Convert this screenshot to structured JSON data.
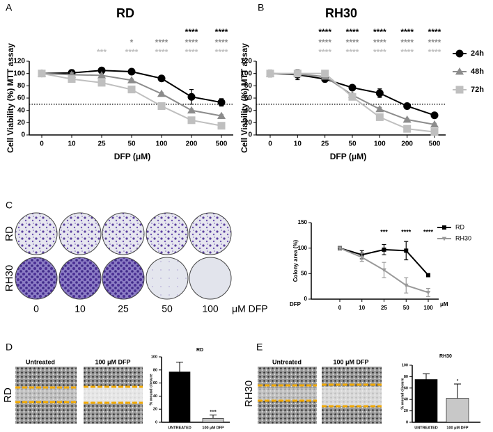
{
  "chart_data": [
    {
      "type": "line",
      "panel": "A",
      "title": "RD",
      "xlabel": "DFP (μM)",
      "ylabel": "Cell Viability (%) MTT assay",
      "categories": [
        "0",
        "10",
        "25",
        "50",
        "100",
        "200",
        "500"
      ],
      "ylim": [
        0,
        120
      ],
      "yticks": [
        0,
        20,
        40,
        60,
        80,
        100,
        120
      ],
      "reference_line": 50,
      "series": [
        {
          "color": "#000000",
          "marker": "circle",
          "values": [
            100,
            101,
            105,
            103,
            92,
            62,
            53
          ],
          "errors": [
            4,
            5,
            4,
            3,
            2,
            12,
            6
          ],
          "significance": [
            null,
            null,
            null,
            null,
            null,
            "****",
            "****"
          ]
        },
        {
          "color": "#8c8c8c",
          "marker": "triangle",
          "values": [
            100,
            98,
            97,
            89,
            67,
            40,
            31
          ],
          "errors": [
            3,
            3,
            2,
            2,
            2,
            2,
            2
          ],
          "significance": [
            null,
            null,
            null,
            "*",
            "****",
            "****",
            "****"
          ]
        },
        {
          "color": "#bfbfbf",
          "marker": "square",
          "values": [
            100,
            91,
            85,
            74,
            47,
            24,
            15
          ],
          "errors": [
            3,
            2,
            2,
            2,
            2,
            2,
            2
          ],
          "significance": [
            null,
            null,
            "***",
            "****",
            "****",
            "****",
            "****"
          ]
        }
      ]
    },
    {
      "type": "line",
      "panel": "B",
      "title": "RH30",
      "xlabel": "DFP (μM)",
      "ylabel": "Cell Viability (%) MTT assay",
      "categories": [
        "0",
        "10",
        "25",
        "50",
        "100",
        "200",
        "500"
      ],
      "ylim": [
        0,
        120
      ],
      "yticks": [
        0,
        20,
        40,
        60,
        80,
        100,
        120
      ],
      "reference_line": 50,
      "legend": "right",
      "series": [
        {
          "name": "24h",
          "color": "#000000",
          "marker": "circle",
          "values": [
            100,
            98,
            91,
            77,
            68,
            47,
            32
          ],
          "errors": [
            5,
            8,
            5,
            4,
            7,
            2,
            2
          ],
          "significance": [
            null,
            null,
            "****",
            "****",
            "****",
            "****",
            "****"
          ]
        },
        {
          "name": "48h",
          "color": "#8c8c8c",
          "marker": "triangle",
          "values": [
            100,
            99,
            95,
            65,
            42,
            25,
            17
          ],
          "errors": [
            4,
            4,
            3,
            3,
            3,
            2,
            2
          ],
          "significance": [
            null,
            null,
            "****",
            "****",
            "****",
            "****",
            "****"
          ]
        },
        {
          "name": "72h",
          "color": "#bfbfbf",
          "marker": "square",
          "values": [
            100,
            100,
            100,
            62,
            29,
            10,
            5
          ],
          "errors": [
            6,
            3,
            3,
            3,
            2,
            2,
            2
          ],
          "significance": [
            null,
            null,
            "****",
            "****",
            "****",
            "****",
            "****"
          ]
        }
      ]
    },
    {
      "type": "line",
      "ylabel": "Colony area (%)",
      "xlabel": "DFP",
      "xunit": "μM",
      "categories": [
        "0",
        "10",
        "25",
        "50",
        "100"
      ],
      "ylim": [
        0,
        150
      ],
      "yticks": [
        0,
        50,
        100,
        150
      ],
      "legend": "top right",
      "annotations": [
        null,
        null,
        "***",
        "****",
        "****"
      ],
      "series": [
        {
          "name": "RD",
          "color": "#000000",
          "marker": "square",
          "values": [
            100,
            87,
            97,
            95,
            47
          ],
          "errors": [
            2,
            8,
            10,
            18,
            3
          ]
        },
        {
          "name": "RH30",
          "color": "#999999",
          "marker": "triangle-down",
          "values": [
            100,
            82,
            57,
            27,
            13
          ],
          "errors": [
            2,
            8,
            15,
            15,
            8
          ]
        }
      ]
    },
    {
      "type": "bar",
      "title": "RD",
      "ylabel": "% wound closure",
      "categories": [
        "UNTREATED",
        "100 μM DFP"
      ],
      "values": [
        77,
        6
      ],
      "errors": [
        15,
        5
      ],
      "colors": [
        "#000000",
        "#c8c8c8"
      ],
      "annotations": [
        null,
        "****"
      ],
      "ylim": [
        0,
        100
      ],
      "yticks": [
        0,
        20,
        40,
        60,
        80,
        100
      ]
    },
    {
      "type": "bar",
      "title": "RH30",
      "ylabel": "% wound closure",
      "categories": [
        "UNTREATED",
        "100 μM DFP"
      ],
      "values": [
        75,
        42
      ],
      "errors": [
        10,
        25
      ],
      "colors": [
        "#000000",
        "#c8c8c8"
      ],
      "annotations": [
        null,
        "*"
      ],
      "ylim": [
        0,
        100
      ],
      "yticks": [
        0,
        20,
        40,
        60,
        80,
        100
      ]
    }
  ],
  "panels": {
    "C": {
      "label": "C",
      "row_labels": [
        "RD",
        "RH30"
      ],
      "column_labels": [
        "0",
        "10",
        "25",
        "50",
        "100"
      ],
      "unit": "μM DFP"
    },
    "D": {
      "label": "D",
      "row_label": "RD",
      "image_labels": [
        "Untreated",
        "100 μM DFP"
      ]
    },
    "E": {
      "label": "E",
      "row_label": "RH30",
      "image_labels": [
        "Untreated",
        "100 μM DFP"
      ]
    }
  }
}
